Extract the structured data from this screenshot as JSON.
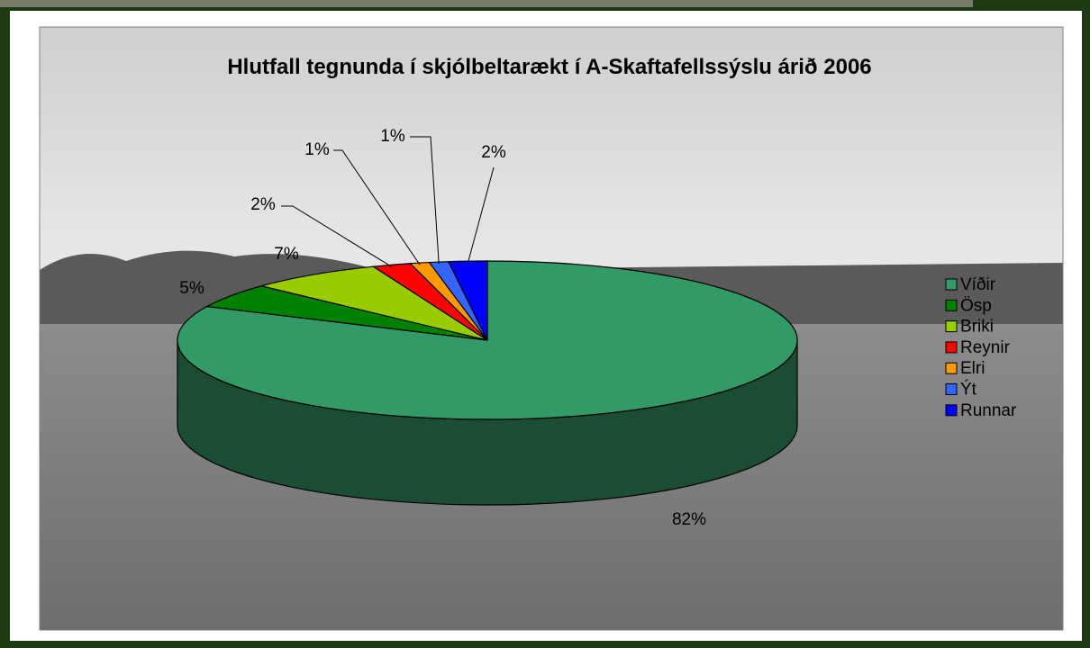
{
  "chart_data": {
    "type": "pie",
    "title": "Hlutfall tegnunda í skjólbeltarækt í A-Skaftafellssýslu árið 2006",
    "categories": [
      "Víðir",
      "Ösp",
      "Briki",
      "Reynir",
      "Elri",
      "Ýt",
      "Runnar"
    ],
    "values": [
      82,
      5,
      7,
      2,
      1,
      1,
      2
    ],
    "value_labels": [
      "82%",
      "5%",
      "7%",
      "2%",
      "1%",
      "1%",
      "2%"
    ],
    "colors": [
      "#339966",
      "#008000",
      "#99cc00",
      "#ff0000",
      "#ff9900",
      "#3366ff",
      "#0000ff"
    ],
    "legend": "right"
  }
}
